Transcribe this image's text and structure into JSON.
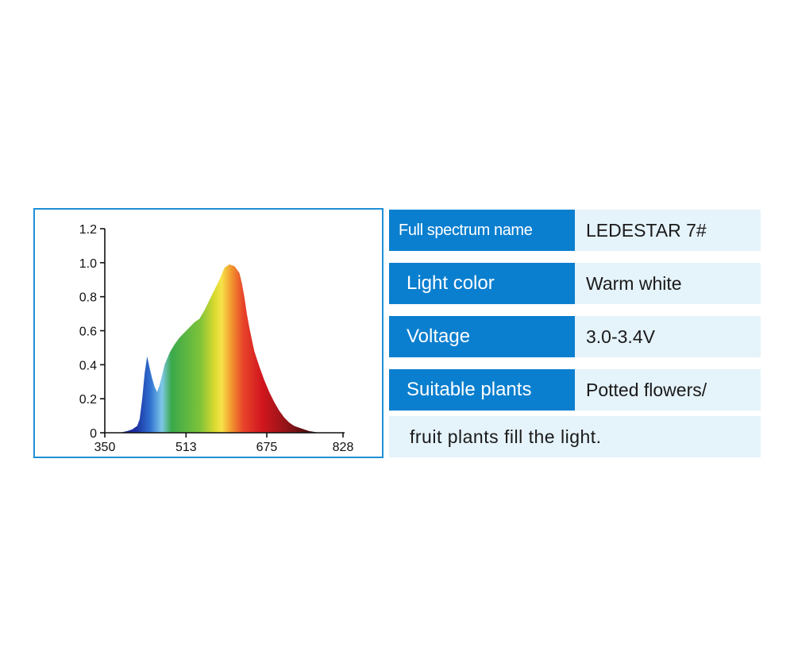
{
  "chart_data": {
    "type": "area",
    "xlim": [
      350,
      828
    ],
    "ylim": [
      0,
      1.2
    ],
    "x_ticks": [
      "350",
      "513",
      "675",
      "828"
    ],
    "y_ticks": [
      "0",
      "0.2",
      "0.4",
      "0.6",
      "0.8",
      "1.0",
      "1.2"
    ],
    "x": [
      380,
      395,
      405,
      415,
      420,
      425,
      430,
      435,
      440,
      445,
      450,
      455,
      460,
      465,
      470,
      480,
      490,
      500,
      510,
      520,
      530,
      540,
      550,
      560,
      570,
      580,
      590,
      600,
      610,
      620,
      625,
      630,
      635,
      640,
      645,
      650,
      660,
      670,
      680,
      690,
      700,
      710,
      720,
      730,
      740,
      750,
      760,
      770,
      780,
      790,
      800,
      810,
      820
    ],
    "y": [
      0.0,
      0.01,
      0.02,
      0.04,
      0.08,
      0.2,
      0.35,
      0.45,
      0.38,
      0.32,
      0.27,
      0.24,
      0.28,
      0.34,
      0.4,
      0.47,
      0.52,
      0.56,
      0.59,
      0.62,
      0.65,
      0.67,
      0.72,
      0.78,
      0.84,
      0.9,
      0.97,
      0.99,
      0.98,
      0.94,
      0.88,
      0.8,
      0.7,
      0.62,
      0.55,
      0.48,
      0.39,
      0.31,
      0.24,
      0.18,
      0.13,
      0.09,
      0.06,
      0.04,
      0.03,
      0.02,
      0.01,
      0.005,
      0.0,
      0.0,
      0.0,
      0.0,
      0.0
    ],
    "colors": {
      "axis": "#111111",
      "frame": "#1f8fd6"
    }
  },
  "spec": {
    "name_label": "Full spectrum name",
    "name_value": "LEDESTAR 7#",
    "color_label": "Light color",
    "color_value": "Warm white",
    "voltage_label": "Voltage",
    "voltage_value": "3.0-3.4V",
    "plants_label": "Suitable plants",
    "plants_value": "Potted flowers/",
    "plants_continued": "fruit plants fill the light."
  },
  "colors": {
    "label_bg": "#0a7fcf",
    "value_bg": "#e5f3fb"
  }
}
